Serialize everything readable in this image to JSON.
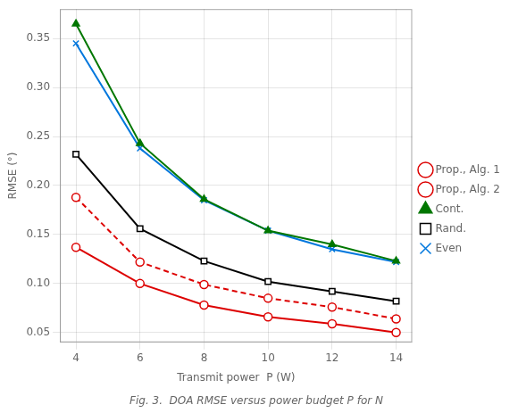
{
  "chart_data": {
    "type": "line",
    "x": [
      4,
      6,
      8,
      10,
      12,
      14
    ],
    "series": [
      {
        "name": "Prop., Alg. 1",
        "color": "#dd0000",
        "marker": "circle",
        "line_style": "solid",
        "values": [
          0.137,
          0.1,
          0.078,
          0.066,
          0.059,
          0.05
        ]
      },
      {
        "name": "Prop., Alg. 2",
        "color": "#dd0000",
        "marker": "circle",
        "line_style": "dashed",
        "values": [
          0.188,
          0.122,
          0.099,
          0.085,
          0.076,
          0.064
        ]
      },
      {
        "name": "Cont.",
        "color": "#007700",
        "marker": "triangle",
        "line_style": "solid",
        "values": [
          0.365,
          0.243,
          0.186,
          0.154,
          0.14,
          0.123
        ]
      },
      {
        "name": "Rand.",
        "color": "#000000",
        "marker": "square",
        "line_style": "solid",
        "values": [
          0.232,
          0.156,
          0.123,
          0.102,
          0.092,
          0.082
        ]
      },
      {
        "name": "Even",
        "color": "#0077dd",
        "marker": "x",
        "line_style": "solid",
        "values": [
          0.345,
          0.238,
          0.185,
          0.154,
          0.135,
          0.122
        ]
      }
    ],
    "xlabel": "Transmit power  P (W)",
    "ylabel": "RMSE (°)",
    "caption": "Fig. 3.  DOA RMSE versus power budget P for N",
    "xlim": [
      3.5,
      14.5
    ],
    "ylim": [
      0.04,
      0.38
    ],
    "xticks": [
      4,
      6,
      8,
      10,
      12,
      14
    ],
    "yticks": [
      0.05,
      {
        "value": 0.1,
        "label": "0.10"
      },
      0.15,
      {
        "value": 0.2,
        "label": "0.20"
      },
      0.25,
      {
        "value": 0.3,
        "label": "0.30"
      },
      0.35
    ],
    "grid": true,
    "legend": "right"
  }
}
